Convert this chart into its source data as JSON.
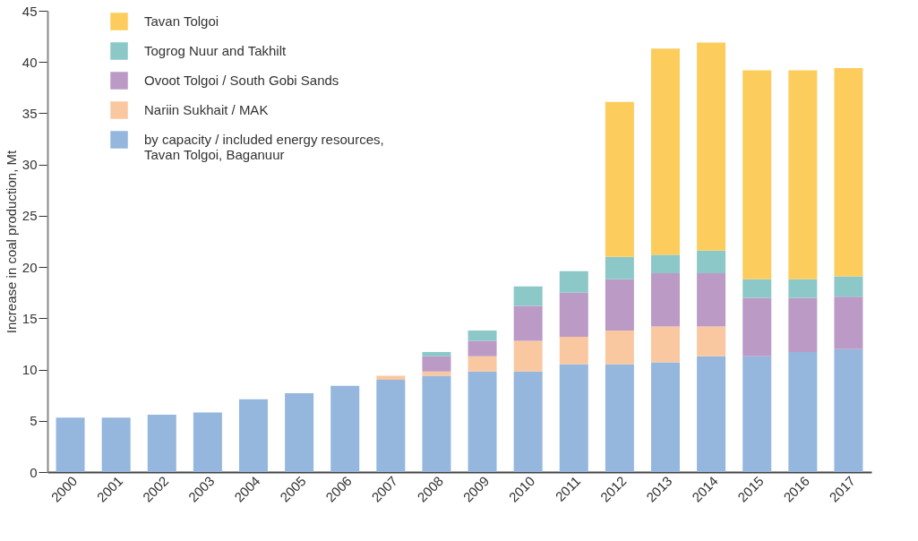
{
  "chart_data": {
    "type": "bar",
    "stacked": true,
    "ylabel": "Increase in coal production, Mt",
    "categories": [
      "2000",
      "2001",
      "2002",
      "2003",
      "2004",
      "2005",
      "2006",
      "2007",
      "2008",
      "2009",
      "2010",
      "2011",
      "2012",
      "2013",
      "2014",
      "2015",
      "2016",
      "2017"
    ],
    "series": [
      {
        "name": "by capacity / included energy resources,\nTavan Tolgoi, Baganuur",
        "color": "#95b6dd",
        "values": [
          5.3,
          5.3,
          5.6,
          5.8,
          7.1,
          7.7,
          8.4,
          9.0,
          9.4,
          9.8,
          9.8,
          10.5,
          10.5,
          10.7,
          11.3,
          11.3,
          11.7,
          12.0
        ]
      },
      {
        "name": "Nariin Sukhait / MAK",
        "color": "#f9c8a0",
        "values": [
          null,
          null,
          null,
          null,
          null,
          null,
          null,
          0.4,
          0.4,
          1.5,
          3.0,
          2.7,
          3.3,
          3.5,
          2.9,
          null,
          null,
          null
        ]
      },
      {
        "name": "Ovoot Tolgoi / South Gobi Sands",
        "color": "#bb9ac6",
        "values": [
          null,
          null,
          null,
          null,
          null,
          null,
          null,
          null,
          1.5,
          1.5,
          3.4,
          4.3,
          5.0,
          5.2,
          5.2,
          5.7,
          5.3,
          5.1
        ]
      },
      {
        "name": "Togrog Nuur and Takhilt",
        "color": "#8cc8c8",
        "values": [
          null,
          null,
          null,
          null,
          null,
          null,
          null,
          null,
          0.4,
          1.0,
          1.9,
          2.1,
          2.2,
          1.8,
          2.2,
          1.8,
          1.8,
          2.0
        ]
      },
      {
        "name": "Tavan Tolgoi",
        "color": "#fccd5c",
        "values": [
          null,
          null,
          null,
          null,
          null,
          null,
          null,
          null,
          null,
          null,
          null,
          null,
          15.1,
          20.1,
          20.3,
          20.4,
          20.4,
          20.3
        ]
      }
    ],
    "ylim": [
      0,
      45
    ],
    "yticks": [
      0,
      5,
      10,
      15,
      20,
      25,
      30,
      35,
      40,
      45
    ],
    "grid": false,
    "legend": "top left"
  }
}
